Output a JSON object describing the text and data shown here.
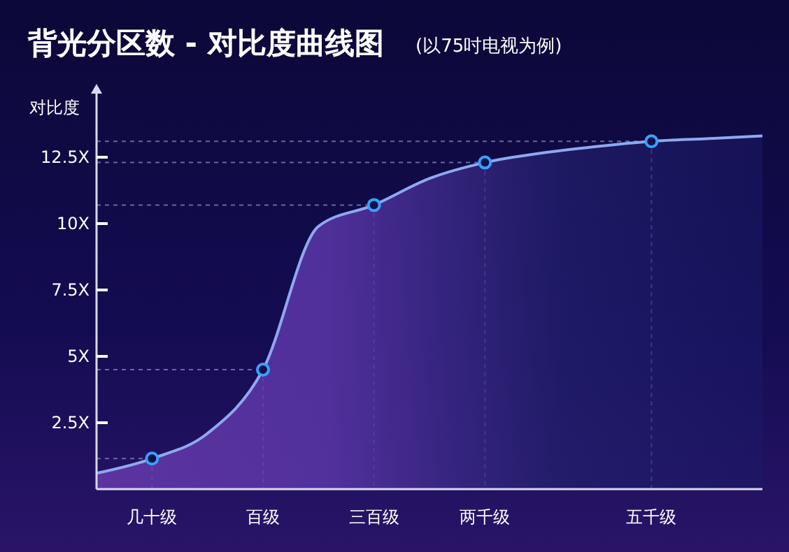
{
  "chart_data": {
    "type": "area",
    "title": "背光分区数 - 对比度曲线图",
    "subtitle": "(以75吋电视为例)",
    "ylabel": "对比度",
    "categories": [
      null,
      "几十级",
      null,
      "百级",
      null,
      "三百级",
      null,
      "两千级",
      null,
      null,
      "五千级",
      null,
      null
    ],
    "ylim": [
      0,
      15
    ],
    "grid": "x",
    "ref_lines": [
      {
        "axis": "y",
        "value": 1.15,
        "line_style": "dashed",
        "color": "#8a8fd0"
      },
      {
        "axis": "y",
        "value": 4.5,
        "line_style": "dashed",
        "color": "#8a8fd0"
      },
      {
        "axis": "y",
        "value": 10.7,
        "line_style": "dashed",
        "color": "#8a8fd0"
      },
      {
        "axis": "y",
        "value": 12.3,
        "line_style": "dashed",
        "color": "#8a8fd0"
      },
      {
        "axis": "y",
        "value": 13.1,
        "line_style": "dashed",
        "color": "#8a8fd0"
      }
    ],
    "yticks": [
      {
        "value": 2.5,
        "label": "2.5X"
      },
      {
        "value": 5,
        "label": "5X"
      },
      {
        "value": 7.5,
        "label": "7.5X"
      },
      {
        "value": 10,
        "label": "10X"
      },
      {
        "value": 12.5,
        "label": "12.5X"
      }
    ],
    "series": [
      {
        "color": "#8fa8f0",
        "values": [
          0.6,
          1.15,
          2.1,
          4.5,
          9.9,
          10.7,
          11.7,
          12.3,
          12.65,
          12.9,
          13.1,
          13.2,
          13.3
        ]
      },
      {
        "type": "scatter",
        "color": "#3aa0ff",
        "marker": "circle",
        "values": [
          null,
          1.15,
          null,
          4.5,
          null,
          10.7,
          null,
          12.3,
          null,
          null,
          13.1,
          null,
          null
        ]
      }
    ]
  }
}
